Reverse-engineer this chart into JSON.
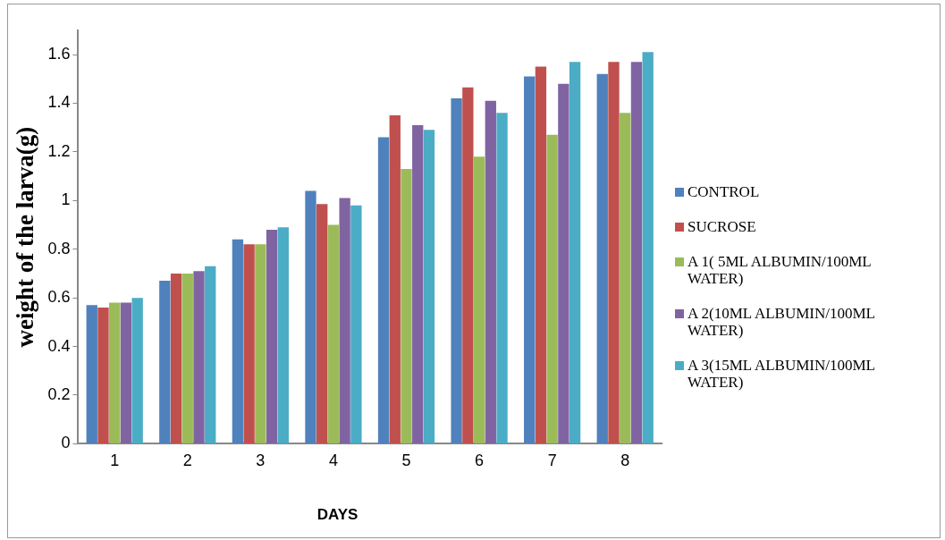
{
  "chart_data": {
    "type": "bar",
    "xlabel": "DAYS",
    "ylabel": "weight of the larva(g)",
    "categories": [
      "1",
      "2",
      "3",
      "4",
      "5",
      "6",
      "7",
      "8"
    ],
    "series": [
      {
        "name": "CONTROL",
        "color": "#4f81bd",
        "values": [
          0.57,
          0.67,
          0.84,
          1.04,
          1.26,
          1.42,
          1.51,
          1.52
        ]
      },
      {
        "name": "SUCROSE",
        "color": "#c0504d",
        "values": [
          0.56,
          0.7,
          0.82,
          0.985,
          1.35,
          1.465,
          1.55,
          1.57
        ]
      },
      {
        "name": "A 1( 5ML ALBUMIN/100ML WATER)",
        "color": "#9bbb59",
        "values": [
          0.58,
          0.7,
          0.82,
          0.9,
          1.13,
          1.18,
          1.27,
          1.36
        ]
      },
      {
        "name": "A 2(10ML ALBUMIN/100ML WATER)",
        "color": "#8064a2",
        "values": [
          0.58,
          0.71,
          0.88,
          1.01,
          1.31,
          1.41,
          1.48,
          1.57
        ]
      },
      {
        "name": "A 3(15ML ALBUMIN/100ML WATER)",
        "color": "#4bacc6",
        "values": [
          0.6,
          0.73,
          0.89,
          0.98,
          1.29,
          1.36,
          1.57,
          1.61
        ]
      }
    ],
    "ylim": [
      0,
      1.7
    ],
    "yticks": [
      0,
      0.2,
      0.4,
      0.6,
      0.8,
      1,
      1.2,
      1.4,
      1.6
    ],
    "grid": false,
    "legend": "right"
  }
}
